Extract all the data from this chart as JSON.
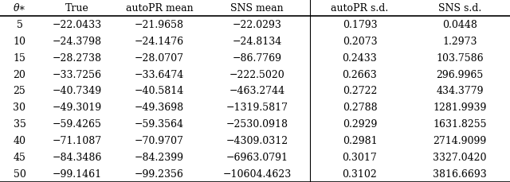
{
  "col_headers": [
    "θ∗",
    "True",
    "autoPR mean",
    "SNS mean",
    "autoPR s.d.",
    "SNS s.d."
  ],
  "rows": [
    [
      "5",
      "−22.0433",
      "−21.9658",
      "−22.0293",
      "0.1793",
      "0.0448"
    ],
    [
      "10",
      "−24.3798",
      "−24.1476",
      "−24.8134",
      "0.2073",
      "1.2973"
    ],
    [
      "15",
      "−28.2738",
      "−28.0707",
      "−86.7769",
      "0.2433",
      "103.7586"
    ],
    [
      "20",
      "−33.7256",
      "−33.6474",
      "−222.5020",
      "0.2663",
      "296.9965"
    ],
    [
      "25",
      "−40.7349",
      "−40.5814",
      "−463.2744",
      "0.2722",
      "434.3779"
    ],
    [
      "30",
      "−49.3019",
      "−49.3698",
      "−1319.5817",
      "0.2788",
      "1281.9939"
    ],
    [
      "35",
      "−59.4265",
      "−59.3564",
      "−2530.0918",
      "0.2929",
      "1631.8255"
    ],
    [
      "40",
      "−71.1087",
      "−70.9707",
      "−4309.0312",
      "0.2981",
      "2714.9099"
    ],
    [
      "45",
      "−84.3486",
      "−84.2399",
      "−6963.0791",
      "0.3017",
      "3327.0420"
    ],
    [
      "50",
      "−99.1461",
      "−99.2356",
      "−10604.4623",
      "0.3102",
      "3816.6693"
    ]
  ],
  "bg_color": "#ffffff",
  "line_color": "#000000",
  "font_size": 9.0,
  "header_font_size": 9.0,
  "figwidth": 6.4,
  "figheight": 2.3,
  "dpi": 100
}
